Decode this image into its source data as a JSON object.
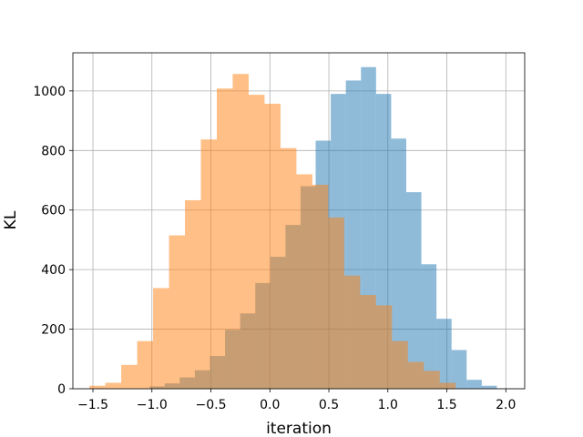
{
  "chart_data": {
    "type": "bar",
    "xlabel": "iteration",
    "ylabel": "KL",
    "xlim": [
      -1.67,
      2.16
    ],
    "ylim": [
      0,
      1128
    ],
    "grid": true,
    "xticks": [
      -1.5,
      -1.0,
      -0.5,
      0.0,
      0.5,
      1.0,
      1.5,
      2.0
    ],
    "xtick_labels": [
      "−1.5",
      "−1.0",
      "−0.5",
      "0.0",
      "0.5",
      "1.0",
      "1.5",
      "2.0"
    ],
    "yticks": [
      0,
      200,
      400,
      600,
      800,
      1000
    ],
    "ytick_labels": [
      "0",
      "200",
      "400",
      "600",
      "800",
      "1000"
    ],
    "series": [
      {
        "color": "#1f77b4",
        "opacity": 0.5,
        "bin_edges": [
          -1.02,
          -0.892,
          -0.764,
          -0.636,
          -0.508,
          -0.38,
          -0.252,
          -0.124,
          0.004,
          0.132,
          0.26,
          0.388,
          0.516,
          0.644,
          0.772,
          0.9,
          1.028,
          1.156,
          1.284,
          1.412,
          1.54,
          1.668,
          1.796,
          1.924
        ],
        "counts": [
          8,
          18,
          38,
          62,
          110,
          198,
          253,
          355,
          443,
          550,
          680,
          833,
          990,
          1035,
          1080,
          990,
          840,
          660,
          418,
          235,
          130,
          30,
          10
        ]
      },
      {
        "color": "#ff7f0e",
        "opacity": 0.5,
        "bin_edges": [
          -1.53,
          -1.395,
          -1.26,
          -1.125,
          -0.99,
          -0.855,
          -0.72,
          -0.585,
          -0.45,
          -0.315,
          -0.18,
          -0.045,
          0.09,
          0.225,
          0.36,
          0.495,
          0.63,
          0.765,
          0.9,
          1.035,
          1.17,
          1.305,
          1.44,
          1.575
        ],
        "counts": [
          10,
          20,
          80,
          160,
          338,
          515,
          633,
          837,
          1008,
          1057,
          987,
          957,
          808,
          720,
          685,
          575,
          380,
          315,
          280,
          160,
          90,
          60,
          20
        ]
      }
    ]
  }
}
